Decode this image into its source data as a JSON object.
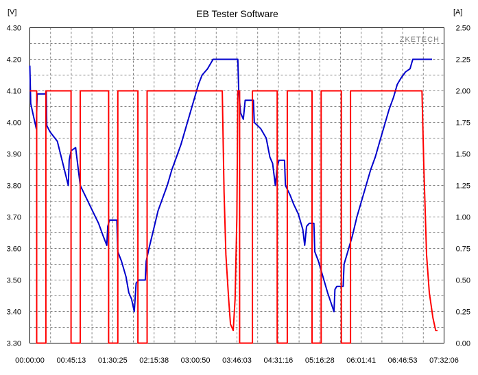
{
  "chart_data": {
    "type": "line",
    "title": "EB Tester Software",
    "watermark": "ZKETECH",
    "ylabel_left": "[V]",
    "ylabel_right": "[A]",
    "grid": true,
    "x_ticks": [
      "00:00:00",
      "00:45:13",
      "01:30:25",
      "02:15:38",
      "03:00:50",
      "03:46:03",
      "04:31:16",
      "05:16:28",
      "06:01:41",
      "06:46:53",
      "07:32:06"
    ],
    "x_range_minutes": [
      0,
      452.1
    ],
    "y_left_ticks": [
      "3.30",
      "3.40",
      "3.50",
      "3.60",
      "3.70",
      "3.80",
      "3.90",
      "4.00",
      "4.10",
      "4.20",
      "4.30"
    ],
    "y_left_range": [
      3.3,
      4.3
    ],
    "y_right_ticks": [
      "0.00",
      "0.25",
      "0.50",
      "0.75",
      "1.00",
      "1.25",
      "1.50",
      "1.75",
      "2.00",
      "2.25",
      "2.50"
    ],
    "y_right_range": [
      0,
      2.5
    ],
    "colors": {
      "voltage": "#0000cc",
      "current": "#ff0000",
      "grid": "#808080"
    },
    "series": [
      {
        "axis": "left",
        "color": "#0000cc",
        "points": [
          [
            0,
            4.18
          ],
          [
            1,
            4.06
          ],
          [
            4,
            4.02
          ],
          [
            7,
            3.98
          ],
          [
            8,
            4.09
          ],
          [
            17,
            4.09
          ],
          [
            18,
            4.1
          ],
          [
            18.5,
            3.99
          ],
          [
            22,
            3.97
          ],
          [
            30,
            3.94
          ],
          [
            36,
            3.87
          ],
          [
            42,
            3.8
          ],
          [
            43,
            3.88
          ],
          [
            45,
            3.91
          ],
          [
            50,
            3.92
          ],
          [
            55,
            3.8
          ],
          [
            60,
            3.77
          ],
          [
            65,
            3.74
          ],
          [
            70,
            3.71
          ],
          [
            75,
            3.68
          ],
          [
            80,
            3.64
          ],
          [
            84,
            3.61
          ],
          [
            85,
            3.67
          ],
          [
            87,
            3.69
          ],
          [
            95,
            3.69
          ],
          [
            96,
            3.59
          ],
          [
            100,
            3.56
          ],
          [
            105,
            3.51
          ],
          [
            108,
            3.46
          ],
          [
            111,
            3.44
          ],
          [
            114,
            3.4
          ],
          [
            116,
            3.49
          ],
          [
            119,
            3.5
          ],
          [
            126,
            3.5
          ],
          [
            127,
            3.56
          ],
          [
            130,
            3.6
          ],
          [
            135,
            3.66
          ],
          [
            140,
            3.72
          ],
          [
            145,
            3.76
          ],
          [
            150,
            3.8
          ],
          [
            155,
            3.85
          ],
          [
            160,
            3.89
          ],
          [
            165,
            3.93
          ],
          [
            170,
            3.98
          ],
          [
            175,
            4.03
          ],
          [
            180,
            4.08
          ],
          [
            184,
            4.12
          ],
          [
            188,
            4.15
          ],
          [
            194,
            4.17
          ],
          [
            200,
            4.2
          ],
          [
            203,
            4.2
          ],
          [
            227,
            4.2
          ],
          [
            228,
            4.1
          ],
          [
            230,
            4.03
          ],
          [
            233,
            4.01
          ],
          [
            235,
            4.07
          ],
          [
            244,
            4.07
          ],
          [
            245,
            4.0
          ],
          [
            252,
            3.98
          ],
          [
            258,
            3.95
          ],
          [
            262,
            3.89
          ],
          [
            265,
            3.87
          ],
          [
            268,
            3.8
          ],
          [
            270,
            3.86
          ],
          [
            272,
            3.88
          ],
          [
            278,
            3.88
          ],
          [
            279,
            3.8
          ],
          [
            284,
            3.77
          ],
          [
            288,
            3.74
          ],
          [
            293,
            3.71
          ],
          [
            298,
            3.66
          ],
          [
            300,
            3.61
          ],
          [
            302,
            3.67
          ],
          [
            305,
            3.68
          ],
          [
            310,
            3.68
          ],
          [
            311,
            3.59
          ],
          [
            315,
            3.56
          ],
          [
            320,
            3.51
          ],
          [
            325,
            3.46
          ],
          [
            332,
            3.4
          ],
          [
            333,
            3.47
          ],
          [
            335,
            3.48
          ],
          [
            342,
            3.48
          ],
          [
            343,
            3.55
          ],
          [
            347,
            3.59
          ],
          [
            352,
            3.64
          ],
          [
            357,
            3.7
          ],
          [
            362,
            3.75
          ],
          [
            367,
            3.8
          ],
          [
            372,
            3.85
          ],
          [
            377,
            3.89
          ],
          [
            382,
            3.94
          ],
          [
            387,
            3.99
          ],
          [
            392,
            4.04
          ],
          [
            397,
            4.08
          ],
          [
            401,
            4.12
          ],
          [
            405,
            4.14
          ],
          [
            410,
            4.16
          ],
          [
            415,
            4.17
          ],
          [
            418,
            4.2
          ],
          [
            421,
            4.2
          ],
          [
            439,
            4.2
          ]
        ]
      },
      {
        "axis": "right",
        "color": "#ff0000",
        "points": [
          [
            0,
            2.0
          ],
          [
            7.5,
            2.0
          ],
          [
            7.5,
            0
          ],
          [
            17.5,
            0
          ],
          [
            17.5,
            2.0
          ],
          [
            45,
            2.0
          ],
          [
            45,
            0
          ],
          [
            55,
            0
          ],
          [
            55,
            2.0
          ],
          [
            86,
            2.0
          ],
          [
            86,
            0
          ],
          [
            96,
            0
          ],
          [
            96,
            2.0
          ],
          [
            118,
            2.0
          ],
          [
            118,
            0
          ],
          [
            128,
            0
          ],
          [
            128,
            2.0
          ],
          [
            210,
            2.0
          ],
          [
            212,
            1.2
          ],
          [
            214,
            0.7
          ],
          [
            217,
            0.35
          ],
          [
            219,
            0.15
          ],
          [
            222,
            0.1
          ],
          [
            224,
            0.35
          ],
          [
            226,
            1.0
          ],
          [
            227,
            2.0
          ],
          [
            229,
            2.0
          ],
          [
            229,
            0
          ],
          [
            243,
            0
          ],
          [
            243,
            2.0
          ],
          [
            270,
            2.0
          ],
          [
            270,
            0
          ],
          [
            281,
            0
          ],
          [
            281,
            2.0
          ],
          [
            308,
            2.0
          ],
          [
            308,
            0
          ],
          [
            318,
            0
          ],
          [
            318,
            2.0
          ],
          [
            340,
            2.0
          ],
          [
            340,
            0
          ],
          [
            350,
            0
          ],
          [
            350,
            2.0
          ],
          [
            428,
            2.0
          ],
          [
            430,
            1.4
          ],
          [
            433,
            0.7
          ],
          [
            436,
            0.4
          ],
          [
            440,
            0.2
          ],
          [
            443,
            0.1
          ],
          [
            445,
            0.1
          ]
        ]
      }
    ]
  }
}
